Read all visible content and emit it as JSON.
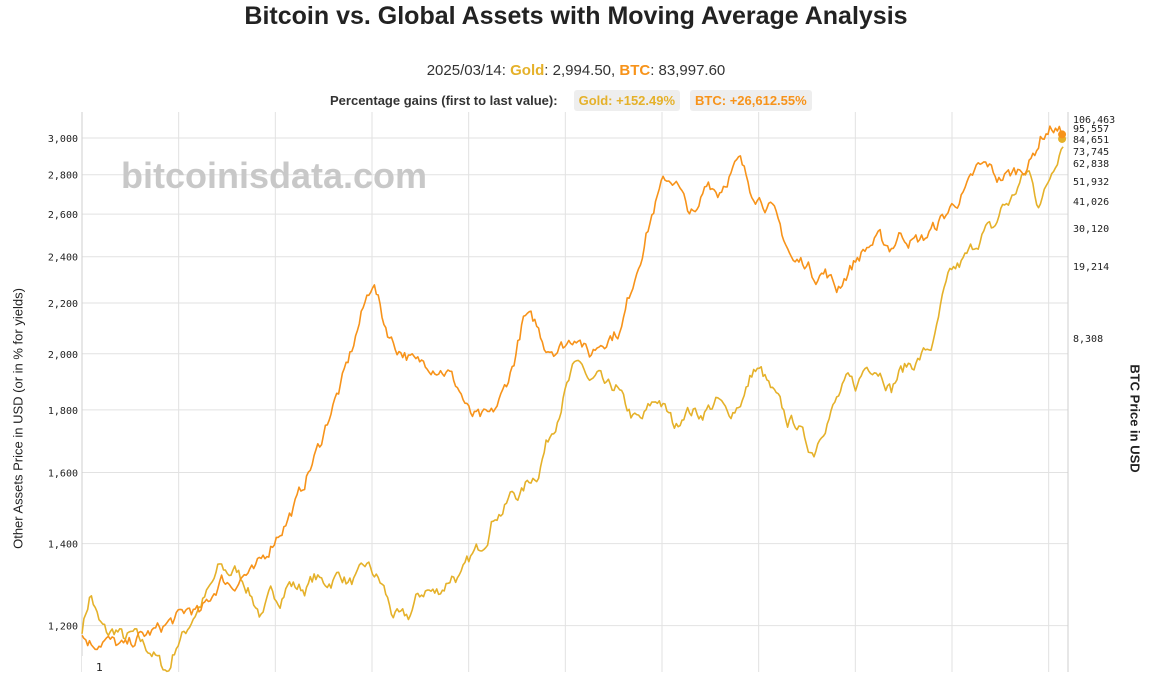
{
  "page": {
    "title": "Bitcoin vs. Global Assets with Moving Average Analysis"
  },
  "header": {
    "date": "2025/03/14",
    "gold_label": "Gold",
    "gold_value": "2,994.50",
    "btc_label": "BTC",
    "btc_value": "83,997.60",
    "gains_label": "Percentage gains (first to last value):",
    "gold_gain": "Gold: +152.49%",
    "btc_gain": "BTC: +26,612.55%"
  },
  "watermark": "bitcoinisdata.com",
  "legend_marker": "1",
  "chart_data": {
    "type": "line",
    "title": "Bitcoin vs. Global Assets with Moving Average Analysis",
    "y_left": {
      "label": "Other Assets Price in USD (or in % for yields)",
      "scale": "log",
      "range": [
        1100,
        3150
      ],
      "ticks": [
        1200,
        1400,
        1600,
        1800,
        2000,
        2200,
        2400,
        2600,
        2800,
        3000
      ],
      "tick_labels": [
        "1,200",
        "1,400",
        "1,600",
        "1,800",
        "2,000",
        "2,200",
        "2,400",
        "2,600",
        "2,800",
        "3,000"
      ]
    },
    "y_right": {
      "label": "BTC Price in USD",
      "tick_labels": [
        "106,463",
        "95,557",
        "84,651",
        "73,745",
        "62,838",
        "51,932",
        "41,026",
        "30,120",
        "19,214",
        "8,308"
      ]
    },
    "x_axis": {
      "tick_labels": []
    },
    "grid": true,
    "colors": {
      "gold": "#e5b12a",
      "btc": "#f7931a"
    },
    "series": [
      {
        "name": "Gold",
        "color": "#e5b12a",
        "values": [
          1195,
          1275,
          1205,
          1180,
          1190,
          1170,
          1180,
          1160,
          1145,
          1120,
          1100,
          1160,
          1185,
          1225,
          1255,
          1290,
          1340,
          1325,
          1330,
          1300,
          1255,
          1215,
          1275,
          1265,
          1300,
          1290,
          1285,
          1315,
          1300,
          1305,
          1325,
          1300,
          1310,
          1345,
          1320,
          1290,
          1230,
          1215,
          1220,
          1265,
          1285,
          1275,
          1290,
          1320,
          1310,
          1355,
          1385,
          1420,
          1480,
          1490,
          1540,
          1535,
          1580,
          1600,
          1690,
          1760,
          1850,
          1930,
          1970,
          1890,
          1910,
          1870,
          1880,
          1820,
          1775,
          1760,
          1810,
          1840,
          1790,
          1740,
          1800,
          1795,
          1785,
          1810,
          1830,
          1780,
          1810,
          1850,
          1940,
          1930,
          1870,
          1820,
          1760,
          1760,
          1700,
          1660,
          1740,
          1790,
          1850,
          1900,
          1880,
          1950,
          1960,
          1930,
          1870,
          1930,
          1960,
          1970,
          2010,
          2040,
          2210,
          2330,
          2360,
          2410,
          2470,
          2520,
          2530,
          2640,
          2670,
          2760,
          2820,
          2660,
          2720,
          2860,
          2994.5
        ]
      },
      {
        "name": "BTC",
        "color": "#f7931a",
        "values": [
          1175,
          1160,
          1170,
          1160,
          1150,
          1170,
          1180,
          1190,
          1205,
          1220,
          1240,
          1225,
          1270,
          1310,
          1295,
          1320,
          1325,
          1370,
          1420,
          1460,
          1520,
          1600,
          1680,
          1790,
          1880,
          2010,
          2160,
          2300,
          2120,
          2030,
          2000,
          1960,
          1970,
          1950,
          1930,
          1870,
          1780,
          1770,
          1780,
          1850,
          1960,
          2140,
          2120,
          2030,
          2020,
          2040,
          2080,
          1990,
          2040,
          2070,
          2090,
          2270,
          2440,
          2620,
          2770,
          2780,
          2640,
          2580,
          2780,
          2710,
          2800,
          2870,
          2730,
          2680,
          2620,
          2500,
          2370,
          2380,
          2320,
          2330,
          2260,
          2330,
          2400,
          2450,
          2480,
          2440,
          2510,
          2470,
          2480,
          2530,
          2590,
          2660,
          2710,
          2830,
          2850,
          2780,
          2800,
          2830,
          2870,
          3010,
          3060,
          3020
        ]
      }
    ]
  }
}
